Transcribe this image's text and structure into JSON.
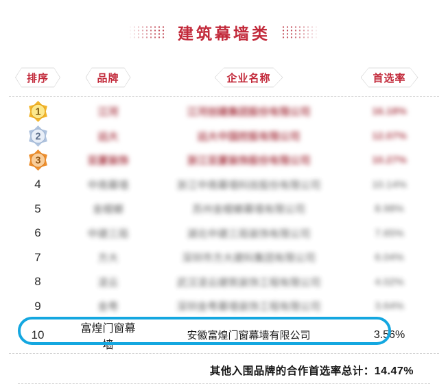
{
  "title": {
    "text": "建筑幕墙类"
  },
  "columns": {
    "rank": "排序",
    "brand": "品牌",
    "company": "企业名称",
    "rate": "首选率"
  },
  "rows": [
    {
      "rank": "1",
      "medal": "gold",
      "brand": "江河",
      "company": "江河创建集团股份有限公司",
      "rate": "16.18%",
      "redacted": "red"
    },
    {
      "rank": "2",
      "medal": "silver",
      "brand": "远大",
      "company": "远大中国控股有限公司",
      "rate": "12.07%",
      "redacted": "red"
    },
    {
      "rank": "3",
      "medal": "bronze",
      "brand": "亚厦装饰",
      "company": "浙江亚厦装饰股份有限公司",
      "rate": "10.27%",
      "redacted": "red"
    },
    {
      "rank": "4",
      "medal": null,
      "brand": "中南幕墙",
      "company": "浙江中南幕墙科技股份有限公司",
      "rate": "10.14%",
      "redacted": "gray"
    },
    {
      "rank": "5",
      "medal": null,
      "brand": "金螳螂",
      "company": "苏州金螳螂幕墙有限公司",
      "rate": "8.98%",
      "redacted": "gray"
    },
    {
      "rank": "6",
      "medal": null,
      "brand": "中建三局",
      "company": "湖北中建三局装饰有限公司",
      "rate": "7.65%",
      "redacted": "gray"
    },
    {
      "rank": "7",
      "medal": null,
      "brand": "方大",
      "company": "深圳市方大建科集团有限公司",
      "rate": "6.04%",
      "redacted": "gray"
    },
    {
      "rank": "8",
      "medal": null,
      "brand": "凌云",
      "company": "武汉凌云建筑装饰工程有限公司",
      "rate": "4.02%",
      "redacted": "gray"
    },
    {
      "rank": "9",
      "medal": null,
      "brand": "金粤",
      "company": "深圳金粤幕墙装饰工程有限公司",
      "rate": "3.64%",
      "redacted": "gray"
    },
    {
      "rank": "10",
      "medal": null,
      "brand": "富煌门窗幕墙",
      "company": "安徽富煌门窗幕墙有限公司",
      "rate": "3.56%",
      "highlighted": true
    }
  ],
  "footer": {
    "label": "其他入围品牌的合作首选率总计：",
    "value": "14.47%"
  },
  "medals": {
    "gold": {
      "outer": "#F2B52B",
      "inner": "#FCE88C",
      "ring": "#E3A119",
      "num": "#7E5B14"
    },
    "silver": {
      "outer": "#AFC3DE",
      "inner": "#E9EFF8",
      "ring": "#9FB4D2",
      "num": "#5C6E8A"
    },
    "bronze": {
      "outer": "#ED8F2F",
      "inner": "#F9CE9B",
      "ring": "#DE7F1F",
      "num": "#8F5414"
    }
  },
  "colors": {
    "accent_red": "#C2293A",
    "highlight_blue": "#14A7E0"
  }
}
